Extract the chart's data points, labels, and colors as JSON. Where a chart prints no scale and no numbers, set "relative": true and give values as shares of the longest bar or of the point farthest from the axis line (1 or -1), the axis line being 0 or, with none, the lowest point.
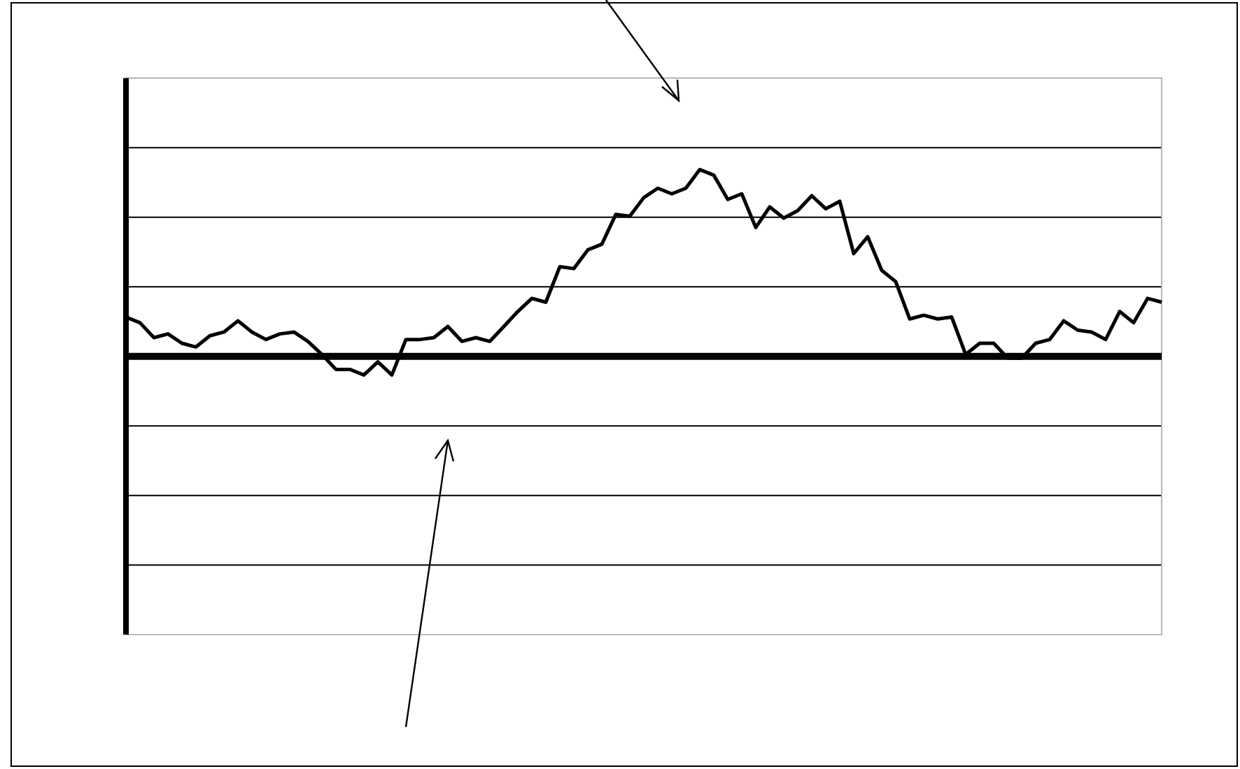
{
  "chart_data": {
    "type": "line",
    "relative": true,
    "color": "#000000",
    "grid": "y",
    "marker": "none",
    "line_style": "solid",
    "categories": [
      null,
      null,
      null,
      null,
      null,
      null,
      null,
      null,
      null,
      null,
      null,
      null,
      null,
      null,
      null,
      null,
      null,
      null,
      null,
      null,
      null,
      null,
      null,
      null,
      null,
      null,
      null,
      null,
      null,
      null,
      null,
      null,
      null,
      null,
      null,
      null,
      null,
      null,
      null,
      null,
      null,
      null,
      null,
      null,
      null,
      null,
      null,
      null,
      null,
      null,
      null,
      null,
      null,
      null,
      null,
      null,
      null,
      null,
      null,
      null,
      null,
      null,
      null,
      null,
      null,
      null,
      null,
      null,
      null,
      null,
      null,
      null,
      null,
      null,
      null
    ],
    "values": [
      0.21,
      0.18,
      0.1,
      0.12,
      0.07,
      0.05,
      0.11,
      0.13,
      0.19,
      0.13,
      0.09,
      0.12,
      0.13,
      0.08,
      0.01,
      -0.07,
      -0.07,
      -0.1,
      -0.03,
      -0.1,
      0.09,
      0.09,
      0.1,
      0.16,
      0.08,
      0.1,
      0.08,
      0.16,
      0.24,
      0.31,
      0.29,
      0.48,
      0.47,
      0.57,
      0.6,
      0.76,
      0.75,
      0.85,
      0.9,
      0.87,
      0.9,
      1.0,
      0.97,
      0.84,
      0.87,
      0.69,
      0.8,
      0.74,
      0.78,
      0.86,
      0.79,
      0.83,
      0.55,
      0.64,
      0.46,
      0.4,
      0.2,
      0.22,
      0.2,
      0.21,
      0.01,
      0.07,
      0.07,
      -0.01,
      -0.01,
      0.07,
      0.09,
      0.19,
      0.14,
      0.13,
      0.09,
      0.24,
      0.18,
      0.31,
      0.29
    ]
  }
}
